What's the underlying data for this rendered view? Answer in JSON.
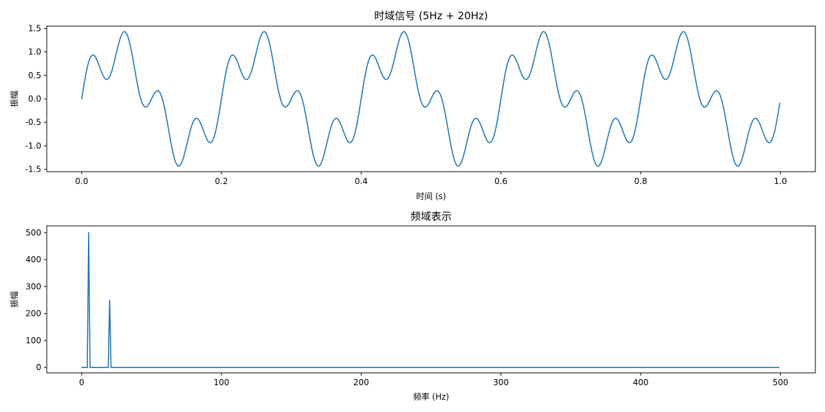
{
  "colors": {
    "series": "#1f77b4",
    "background": "#ffffff",
    "axes": "#000000"
  },
  "chart_data": [
    {
      "type": "line",
      "title": "时域信号 (5Hz + 20Hz)",
      "xlabel": "时间 (s)",
      "ylabel": "振幅",
      "xlim": [
        -0.05,
        1.05
      ],
      "ylim": [
        -1.55,
        1.55
      ],
      "xticks": [
        0.0,
        0.2,
        0.4,
        0.6,
        0.8,
        1.0
      ],
      "xtick_labels": [
        "0.0",
        "0.2",
        "0.4",
        "0.6",
        "0.8",
        "1.0"
      ],
      "yticks": [
        1.5,
        1.0,
        0.5,
        0.0,
        -0.5,
        -1.0,
        -1.5
      ],
      "ytick_labels": [
        "1.5",
        "1.0",
        "0.5",
        "0.0",
        "-0.5",
        "-1.0",
        "-1.5"
      ],
      "grid": false,
      "series": [
        {
          "formula": "sin(2*pi*5*t) + 0.5*sin(2*pi*20*t)",
          "x_start": 0.0,
          "x_end": 0.999,
          "x_step": 0.001
        }
      ]
    },
    {
      "type": "line",
      "title": "频域表示",
      "xlabel": "频率 (Hz)",
      "ylabel": "振幅",
      "xlim": [
        -25,
        525
      ],
      "ylim": [
        -20,
        525
      ],
      "xticks": [
        0,
        100,
        200,
        300,
        400,
        500
      ],
      "xtick_labels": [
        "0",
        "100",
        "200",
        "300",
        "400",
        "500"
      ],
      "yticks": [
        500,
        400,
        300,
        200,
        100,
        0
      ],
      "ytick_labels": [
        "500",
        "400",
        "300",
        "200",
        "100",
        "0"
      ],
      "grid": false,
      "series": [
        {
          "x": [
            0,
            4,
            5,
            6,
            19,
            20,
            21,
            499
          ],
          "y": [
            0,
            0,
            500,
            0,
            0,
            250,
            0,
            0
          ]
        }
      ]
    }
  ]
}
